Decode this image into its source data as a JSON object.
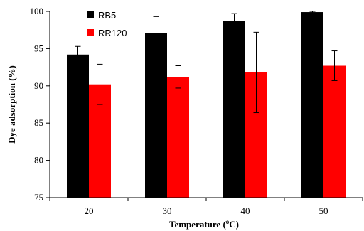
{
  "chart_data": {
    "type": "bar",
    "title": "",
    "xlabel": "Temperature (oC)",
    "xlabel_parts": {
      "main": "Temperature (",
      "sup": "o",
      "rest": "C)"
    },
    "ylabel": "Dye adsorption (%)",
    "categories": [
      "20",
      "30",
      "40",
      "50"
    ],
    "ylim": [
      75,
      100
    ],
    "yticks": [
      75,
      80,
      85,
      90,
      95,
      100
    ],
    "grid": false,
    "legend_position": "top-left",
    "series": [
      {
        "name": "RB5",
        "color": "#000000",
        "values": [
          94.2,
          97.1,
          98.7,
          99.9
        ],
        "errors": [
          1.1,
          2.2,
          1.0,
          0.1
        ]
      },
      {
        "name": "RR120",
        "color": "#ff0000",
        "values": [
          90.2,
          91.2,
          91.8,
          92.7
        ],
        "errors": [
          2.7,
          1.5,
          5.4,
          2.0
        ]
      }
    ]
  }
}
